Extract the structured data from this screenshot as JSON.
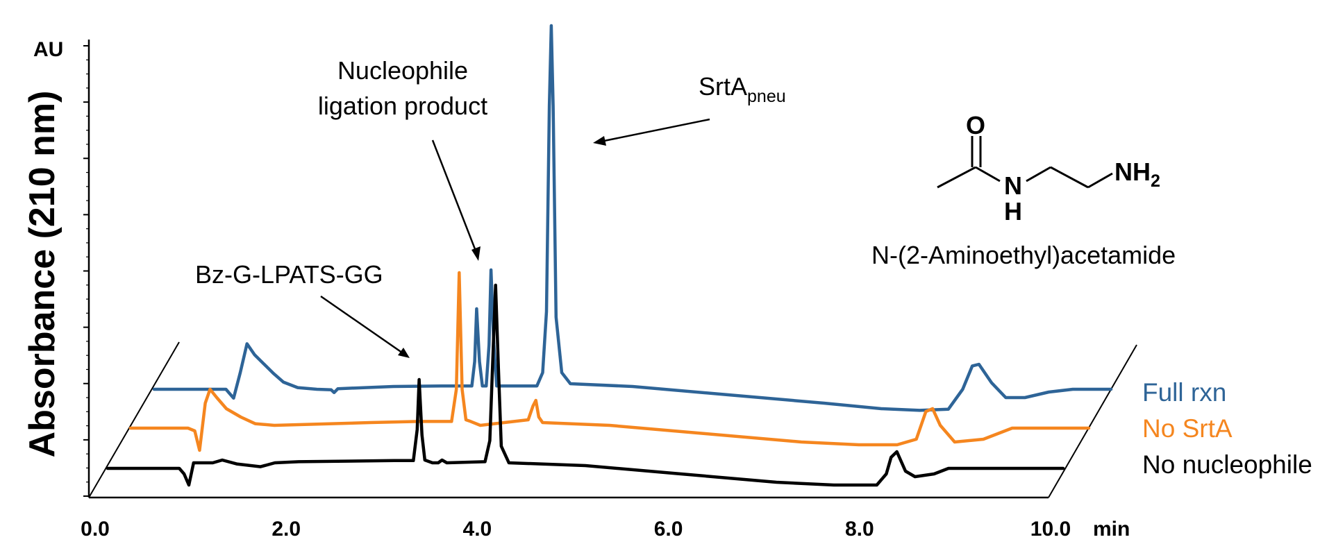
{
  "chart_data": {
    "type": "line",
    "title": "",
    "ylabel": "Absorbance (210 nm)",
    "yunit": "AU",
    "xunit": "min",
    "xlim": [
      0,
      10
    ],
    "xticks": [
      "0.0",
      "2.0",
      "4.0",
      "6.0",
      "8.0",
      "10.0"
    ],
    "y_tick_count": 32,
    "legend_position": "right",
    "layout_style": "stacked 3D offset traces",
    "series": [
      {
        "name": "Full rxn",
        "color": "#2e6497",
        "points": [
          [
            0,
            0
          ],
          [
            0.75,
            0
          ],
          [
            0.83,
            -0.16
          ],
          [
            0.9,
            0.3
          ],
          [
            0.97,
            0.82
          ],
          [
            1.05,
            0.62
          ],
          [
            1.15,
            0.45
          ],
          [
            1.25,
            0.28
          ],
          [
            1.35,
            0.13
          ],
          [
            1.5,
            0.03
          ],
          [
            1.7,
            0
          ],
          [
            1.85,
            -0.01
          ],
          [
            1.88,
            -0.06
          ],
          [
            1.92,
            0.01
          ],
          [
            2.5,
            0.05
          ],
          [
            3.0,
            0.06
          ],
          [
            3.32,
            0.06
          ],
          [
            3.35,
            0.5
          ],
          [
            3.37,
            1.45
          ],
          [
            3.4,
            0.5
          ],
          [
            3.43,
            0.06
          ],
          [
            3.47,
            0.06
          ],
          [
            3.5,
            0.8
          ],
          [
            3.52,
            2.15
          ],
          [
            3.55,
            0.8
          ],
          [
            3.58,
            0.06
          ],
          [
            4.0,
            0.06
          ],
          [
            4.06,
            0.3
          ],
          [
            4.1,
            1.4
          ],
          [
            4.13,
            5.1
          ],
          [
            4.15,
            6.55
          ],
          [
            4.17,
            5.1
          ],
          [
            4.2,
            1.3
          ],
          [
            4.26,
            0.3
          ],
          [
            4.35,
            0.1
          ],
          [
            5.0,
            0.05
          ],
          [
            6.0,
            -0.1
          ],
          [
            7.0,
            -0.25
          ],
          [
            7.6,
            -0.35
          ],
          [
            8.0,
            -0.38
          ],
          [
            8.3,
            -0.36
          ],
          [
            8.45,
            0
          ],
          [
            8.55,
            0.42
          ],
          [
            8.62,
            0.45
          ],
          [
            8.75,
            0.12
          ],
          [
            8.9,
            -0.15
          ],
          [
            9.1,
            -0.15
          ],
          [
            9.35,
            -0.05
          ],
          [
            9.6,
            0
          ],
          [
            10.0,
            0
          ]
        ]
      },
      {
        "name": "No SrtA",
        "color": "#f5861f",
        "points": [
          [
            0,
            0
          ],
          [
            0.6,
            0
          ],
          [
            0.67,
            -0.05
          ],
          [
            0.72,
            -0.4
          ],
          [
            0.78,
            0.45
          ],
          [
            0.83,
            0.7
          ],
          [
            0.9,
            0.55
          ],
          [
            1.0,
            0.35
          ],
          [
            1.15,
            0.2
          ],
          [
            1.3,
            0.08
          ],
          [
            1.5,
            0.05
          ],
          [
            2.5,
            0.1
          ],
          [
            3.0,
            0.12
          ],
          [
            3.35,
            0.12
          ],
          [
            3.4,
            0.7
          ],
          [
            3.43,
            2.8
          ],
          [
            3.46,
            0.7
          ],
          [
            3.5,
            0.15
          ],
          [
            3.55,
            0.12
          ],
          [
            3.65,
            0.05
          ],
          [
            4.15,
            0.15
          ],
          [
            4.2,
            0.4
          ],
          [
            4.23,
            0.5
          ],
          [
            4.26,
            0.2
          ],
          [
            4.3,
            0.1
          ],
          [
            5.0,
            0.05
          ],
          [
            6.0,
            -0.1
          ],
          [
            7.0,
            -0.25
          ],
          [
            7.6,
            -0.3
          ],
          [
            8.0,
            -0.3
          ],
          [
            8.2,
            -0.2
          ],
          [
            8.3,
            0.3
          ],
          [
            8.37,
            0.35
          ],
          [
            8.45,
            0.05
          ],
          [
            8.6,
            -0.25
          ],
          [
            8.9,
            -0.2
          ],
          [
            9.2,
            0
          ],
          [
            10.0,
            0
          ]
        ]
      },
      {
        "name": "No nucleophile",
        "color": "#000000",
        "points": [
          [
            0,
            0
          ],
          [
            0.75,
            0
          ],
          [
            0.8,
            -0.1
          ],
          [
            0.85,
            -0.3
          ],
          [
            0.9,
            0.1
          ],
          [
            1.0,
            0.1
          ],
          [
            1.1,
            0.1
          ],
          [
            1.2,
            0.15
          ],
          [
            1.35,
            0.08
          ],
          [
            1.6,
            0.03
          ],
          [
            1.75,
            0.1
          ],
          [
            2.0,
            0.12
          ],
          [
            3.0,
            0.14
          ],
          [
            3.2,
            0.14
          ],
          [
            3.24,
            0.7
          ],
          [
            3.26,
            1.6
          ],
          [
            3.29,
            0.6
          ],
          [
            3.32,
            0.15
          ],
          [
            3.4,
            0.1
          ],
          [
            3.46,
            0.1
          ],
          [
            3.5,
            0.15
          ],
          [
            3.55,
            0.1
          ],
          [
            3.95,
            0.12
          ],
          [
            4.0,
            0.5
          ],
          [
            4.03,
            1.9
          ],
          [
            4.06,
            3.3
          ],
          [
            4.09,
            1.8
          ],
          [
            4.12,
            0.4
          ],
          [
            4.2,
            0.1
          ],
          [
            5.0,
            0.05
          ],
          [
            6.0,
            -0.1
          ],
          [
            7.0,
            -0.25
          ],
          [
            7.6,
            -0.3
          ],
          [
            8.05,
            -0.3
          ],
          [
            8.15,
            -0.1
          ],
          [
            8.2,
            0.2
          ],
          [
            8.26,
            0.3
          ],
          [
            8.35,
            -0.05
          ],
          [
            8.45,
            -0.15
          ],
          [
            8.65,
            -0.1
          ],
          [
            8.8,
            0
          ],
          [
            10.0,
            0
          ]
        ]
      }
    ],
    "annotations": [
      {
        "id": "bz",
        "text": "Bz-G-LPATS-GG"
      },
      {
        "id": "nuc1",
        "text": "Nucleophile"
      },
      {
        "id": "nuc2",
        "text": "ligation product"
      },
      {
        "id": "srta_main",
        "text": "SrtA"
      },
      {
        "id": "srta_sub",
        "text": "pneu"
      }
    ],
    "structure": {
      "name": "N-(2-Aminoethyl)acetamide",
      "atoms": {
        "O": "O",
        "N": "N",
        "H": "H",
        "NH": "NH",
        "sub2": "2"
      }
    }
  }
}
